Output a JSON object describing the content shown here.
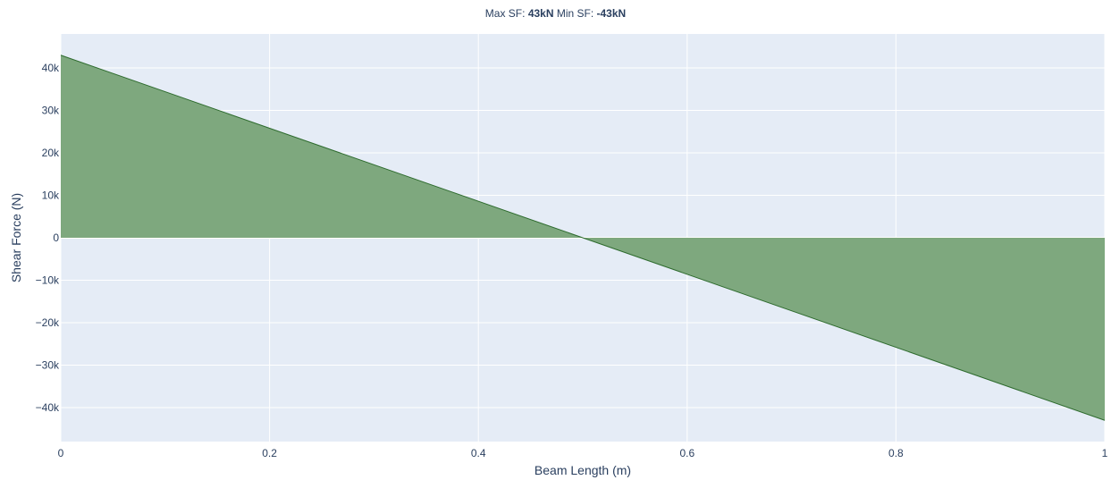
{
  "title": {
    "max_label": "Max SF: ",
    "max_value": "43kN",
    "min_label": " Min SF: ",
    "min_value": "-43kN"
  },
  "chart_data": {
    "type": "area",
    "title": "Max SF: 43kN Min SF: -43kN",
    "xlabel": "Beam Length (m)",
    "ylabel": "Shear Force (N)",
    "xlim": [
      0,
      1
    ],
    "ylim": [
      -48000,
      48000
    ],
    "x_ticks": [
      {
        "value": 0,
        "label": "0"
      },
      {
        "value": 0.2,
        "label": "0.2"
      },
      {
        "value": 0.4,
        "label": "0.4"
      },
      {
        "value": 0.6,
        "label": "0.6"
      },
      {
        "value": 0.8,
        "label": "0.8"
      },
      {
        "value": 1,
        "label": "1"
      }
    ],
    "y_ticks": [
      {
        "value": 40000,
        "label": "40k"
      },
      {
        "value": 30000,
        "label": "30k"
      },
      {
        "value": 20000,
        "label": "20k"
      },
      {
        "value": 10000,
        "label": "10k"
      },
      {
        "value": 0,
        "label": "0"
      },
      {
        "value": -10000,
        "label": "−10k"
      },
      {
        "value": -20000,
        "label": "−20k"
      },
      {
        "value": -30000,
        "label": "−30k"
      },
      {
        "value": -40000,
        "label": "−40k"
      }
    ],
    "grid": true,
    "fill_to_zero": true,
    "series": [
      {
        "x": [
          0,
          0.5,
          1
        ],
        "y": [
          43000,
          0,
          -43000
        ],
        "fill_color": "#7ea87e",
        "line_color": "#2e6b2e"
      }
    ],
    "colors": {
      "plot_bg": "#e5ecf6",
      "grid": "#ffffff",
      "text": "#2a3f5f"
    }
  }
}
